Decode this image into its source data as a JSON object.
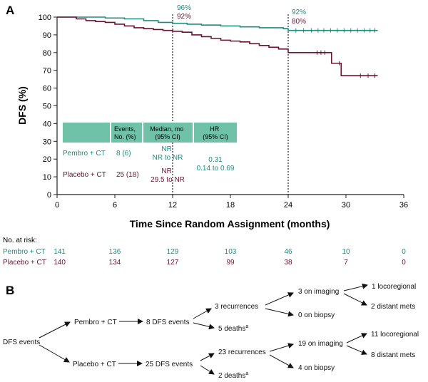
{
  "colors": {
    "pembro": "#1e8c7e",
    "placebo": "#6b1231",
    "table_header_bg": "#6fc1a8",
    "axis": "#222222",
    "text": "#111111"
  },
  "panel_a": {
    "label": "A",
    "chart_data": {
      "type": "line",
      "step": true,
      "xlabel": "Time Since Random Assignment (months)",
      "ylabel": "DFS (%)",
      "xlim": [
        0,
        36
      ],
      "ylim": [
        0,
        100
      ],
      "xticks": [
        "0",
        "6",
        "12",
        "18",
        "24",
        "30",
        "36"
      ],
      "yticks": [
        "0",
        "10",
        "20",
        "30",
        "40",
        "50",
        "60",
        "70",
        "80",
        "90",
        "100"
      ],
      "series": [
        {
          "name": "Pembro + CT",
          "color": "#1e8c7e",
          "x": [
            0,
            5,
            7,
            9,
            10.5,
            12,
            13.5,
            15,
            17,
            19,
            21,
            23.5,
            24,
            33.3
          ],
          "y": [
            100,
            99.5,
            99,
            98,
            97,
            96.5,
            96,
            95.5,
            95,
            94.5,
            94,
            93.5,
            92.5,
            92.5
          ],
          "censor_x": [
            24.8,
            25.6,
            26.4,
            27.1,
            27.7,
            28.4,
            29.1,
            29.8,
            30.5,
            31.2,
            31.9,
            32.5,
            33.0
          ]
        },
        {
          "name": "Placebo + CT",
          "color": "#6b1231",
          "x": [
            0,
            2,
            3,
            4,
            5,
            6,
            7,
            8,
            9,
            10,
            11,
            12,
            13,
            14,
            15,
            16,
            17,
            18,
            19,
            20,
            21,
            22,
            23,
            24,
            26,
            27.8,
            28.5,
            29.5,
            33.3
          ],
          "y": [
            100,
            99,
            98,
            97.5,
            97,
            96,
            95,
            94,
            93.5,
            93,
            92.5,
            92,
            91.5,
            90,
            89,
            88,
            87,
            86.5,
            86,
            85,
            84,
            83,
            82,
            80,
            80,
            80,
            74,
            67,
            67
          ],
          "censor_x": [
            27.0,
            27.4,
            27.8,
            29.3,
            31.5,
            32.3,
            33.0
          ]
        }
      ],
      "annotations": [
        {
          "x": 12,
          "pembro_label": "96%",
          "placebo_label": "92%"
        },
        {
          "x": 24,
          "pembro_label": "92%",
          "placebo_label": "80%"
        }
      ]
    },
    "table": {
      "headers": [
        "",
        "Events,\nNo. (%)",
        "Median, mo\n(95% CI)",
        "HR\n(95% CI)"
      ],
      "rows": [
        {
          "label": "Pembro + CT",
          "events": "8 (6)",
          "median": "NR\nNR to NR"
        },
        {
          "label": "Placebo + CT",
          "events": "25 (18)",
          "median": "NR\n29.5 to NR"
        }
      ],
      "hr": "0.31",
      "hr_ci": "0.14 to 0.69"
    },
    "risk": {
      "title": "No. at risk:",
      "rows": [
        {
          "label": "Pembro + CT",
          "values": [
            "141",
            "136",
            "129",
            "103",
            "46",
            "10",
            "0"
          ]
        },
        {
          "label": "Placebo + CT",
          "values": [
            "140",
            "134",
            "127",
            "99",
            "38",
            "7",
            "0"
          ]
        }
      ]
    }
  },
  "panel_b": {
    "label": "B",
    "root": "DFS events",
    "pembro": {
      "arm": "Pembro + CT",
      "events": "8 DFS events",
      "recurrences": "3 recurrences",
      "deaths": "5 deaths",
      "deaths_sup": "a",
      "imaging": "3 on imaging",
      "biopsy": "0 on biopsy",
      "locoregional": "1 locoregional",
      "distant": "2 distant mets"
    },
    "placebo": {
      "arm": "Placebo + CT",
      "events": "25 DFS events",
      "recurrences": "23 recurrences",
      "deaths": "2 deaths",
      "deaths_sup": "a",
      "imaging": "19 on imaging",
      "biopsy": "4 on biopsy",
      "locoregional": "11 locoregional",
      "distant": "8 distant mets"
    }
  }
}
